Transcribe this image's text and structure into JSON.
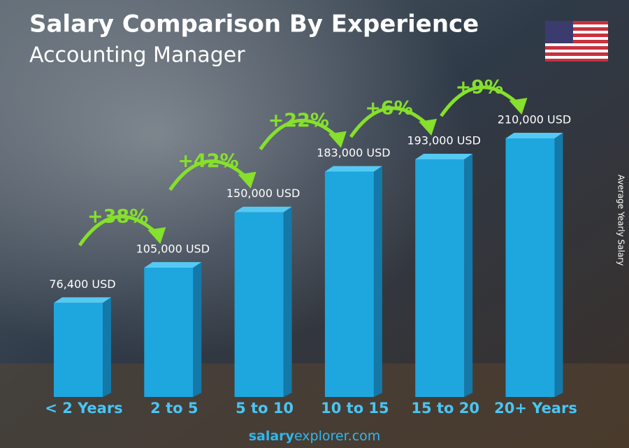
{
  "chart_data": {
    "type": "bar3d",
    "title": "Salary Comparison By Experience",
    "subtitle": "Accounting Manager",
    "y_axis_label": "Average Yearly Salary",
    "categories": [
      "< 2 Years",
      "2 to 5",
      "5 to 10",
      "10 to 15",
      "15 to 20",
      "20+ Years"
    ],
    "values": [
      76400,
      105000,
      150000,
      183000,
      193000,
      210000
    ],
    "value_labels": [
      "76,400 USD",
      "105,000 USD",
      "150,000 USD",
      "183,000 USD",
      "193,000 USD",
      "210,000 USD"
    ],
    "annotations": [
      "+38%",
      "+42%",
      "+22%",
      "+6%",
      "+9%"
    ],
    "color": "#1ea6df",
    "annotation_color": "#86e02c",
    "source": [
      "salary",
      "explorer.com"
    ]
  }
}
